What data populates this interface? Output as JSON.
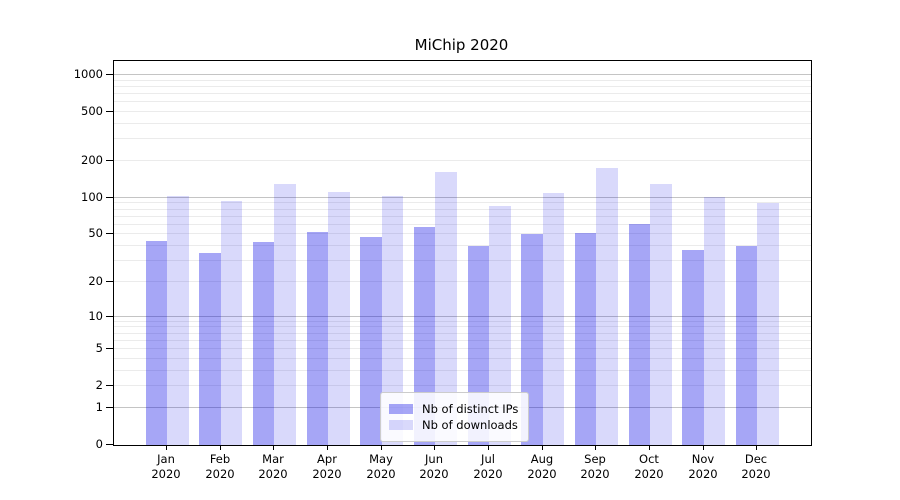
{
  "title": "MiChip 2020",
  "chart_data": {
    "type": "bar",
    "title": "MiChip 2020",
    "categories": [
      "Jan",
      "Feb",
      "Mar",
      "Apr",
      "May",
      "Jun",
      "Jul",
      "Aug",
      "Sep",
      "Oct",
      "Nov",
      "Dec"
    ],
    "year_label": "2020",
    "series": [
      {
        "name": "Nb of distinct IPs",
        "color": "rgba(0,0,230,0.35)",
        "values": [
          44,
          35,
          43,
          52,
          48,
          58,
          40,
          50,
          51,
          61,
          37,
          40
        ]
      },
      {
        "name": "Nb of downloads",
        "color": "rgba(0,0,230,0.15)",
        "values": [
          104,
          94,
          129,
          112,
          104,
          163,
          86,
          110,
          177,
          129,
          102,
          90
        ]
      }
    ],
    "xlabel": "",
    "ylabel": "",
    "yscale": "log1p",
    "ylim": [
      0,
      1300
    ],
    "yticks": [
      0,
      1,
      2,
      5,
      10,
      20,
      50,
      100,
      200,
      500,
      1000
    ],
    "major_grid_values": [
      1,
      10,
      100,
      1000
    ],
    "grid": "horizontal",
    "legend_position": "lower center",
    "colors": {
      "major_grid": "#c4c4c4",
      "minor_grid": "#ebebeb",
      "axis": "#000000",
      "background": "#ffffff"
    }
  }
}
